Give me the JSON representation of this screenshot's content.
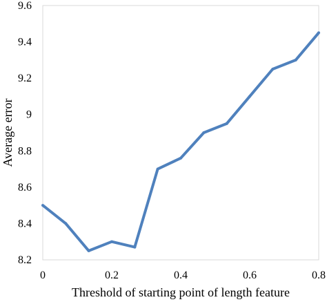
{
  "chart_data": {
    "type": "line",
    "xlabel": "Threshold of starting point of length feature",
    "ylabel": "Average error",
    "xlim": [
      0,
      0.8
    ],
    "ylim": [
      8.2,
      9.6
    ],
    "x_ticks": [
      0,
      0.2,
      0.4,
      0.6,
      0.8
    ],
    "x_tick_labels": [
      "0",
      "0.2",
      "0.4",
      "0.6",
      "0.8"
    ],
    "y_ticks": [
      8.2,
      8.4,
      8.6,
      8.8,
      9,
      9.2,
      9.4,
      9.6
    ],
    "y_tick_labels": [
      "8.2",
      "8.4",
      "8.6",
      "8.8",
      "9",
      "9.2",
      "9.4",
      "9.6"
    ],
    "grid": false,
    "legend": "none",
    "series": [
      {
        "color": "#4f81bd",
        "x": [
          0,
          0.0667,
          0.1333,
          0.2,
          0.2667,
          0.3333,
          0.4,
          0.4667,
          0.5333,
          0.6,
          0.6667,
          0.7333,
          0.8
        ],
        "y": [
          8.5,
          8.4,
          8.25,
          8.3,
          8.27,
          8.7,
          8.76,
          8.9,
          8.95,
          9.1,
          9.25,
          9.3,
          9.45
        ]
      }
    ]
  }
}
